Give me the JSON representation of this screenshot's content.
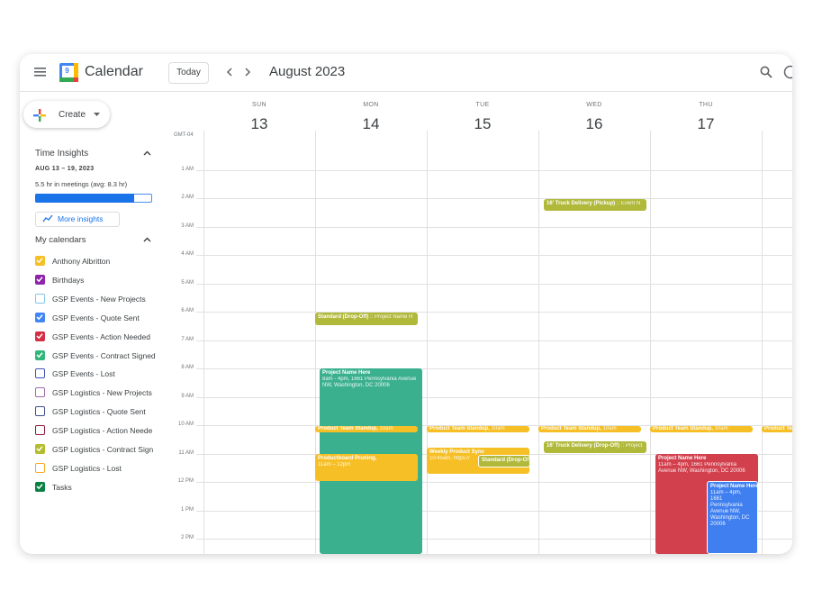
{
  "header": {
    "logo_day": "9",
    "app_name": "Calendar",
    "today_button": "Today",
    "month": "August 2023"
  },
  "sidebar": {
    "create": "Create",
    "time_insights": {
      "title": "Time Insights",
      "range": "AUG 13 – 19, 2023",
      "summary": "5.5 hr in meetings (avg: 8.3 hr)",
      "more": "More insights"
    },
    "my_calendars": {
      "title": "My calendars",
      "calendars": [
        {
          "name": "Anthony Albritton",
          "color": "#f6bf26",
          "checked": true
        },
        {
          "name": "Birthdays",
          "color": "#8e24aa",
          "checked": true
        },
        {
          "name": "GSP Events - New Projects",
          "color": "#7ec8e3",
          "checked": false
        },
        {
          "name": "GSP Events - Quote Sent",
          "color": "#4285f4",
          "checked": true
        },
        {
          "name": "GSP Events - Action Needed",
          "color": "#d32f45",
          "checked": true
        },
        {
          "name": "GSP Events - Contract Signed",
          "color": "#33b679",
          "checked": true
        },
        {
          "name": "GSP Events - Lost",
          "color": "#3f51b5",
          "checked": false
        },
        {
          "name": "GSP Logistics - New Projects",
          "color": "#9e69af",
          "checked": false
        },
        {
          "name": "GSP Logistics - Quote Sent",
          "color": "#3f4f8f",
          "checked": false
        },
        {
          "name": "GSP Logistics - Action Neede",
          "color": "#8b1a3a",
          "checked": false
        },
        {
          "name": "GSP Logistics - Contract Sign",
          "color": "#b4bd2e",
          "checked": true
        },
        {
          "name": "GSP Logistics - Lost",
          "color": "#f6a623",
          "checked": false
        },
        {
          "name": "Tasks",
          "color": "#0b8043",
          "checked": true
        }
      ]
    }
  },
  "grid": {
    "timezone": "GMT-04",
    "days": [
      {
        "weekday": "SUN",
        "date": "13"
      },
      {
        "weekday": "MON",
        "date": "14"
      },
      {
        "weekday": "TUE",
        "date": "15"
      },
      {
        "weekday": "WED",
        "date": "16"
      },
      {
        "weekday": "THU",
        "date": "17"
      }
    ],
    "hours": [
      "1 AM",
      "2 AM",
      "3 AM",
      "4 AM",
      "5 AM",
      "6 AM",
      "7 AM",
      "8 AM",
      "9 AM",
      "10 AM",
      "11 AM",
      "12 PM",
      "1 PM",
      "2 PM"
    ]
  },
  "events": [
    {
      "title": "16' Truck Delivery (Pickup)",
      "detail": ":: Event N",
      "color": "#b1b93a"
    },
    {
      "title": "Standard (Drop-Off)",
      "detail": ":: Project Name H",
      "color": "#b1b93a"
    },
    {
      "title": "Project Name Here",
      "detail": "8am - 4pm, 1661 Pennsylvania Avenue NW, Washington, DC 20006",
      "color": "#3bb08f"
    },
    {
      "title": "Product Team Standup,",
      "detail": "10am",
      "color": "#f6bf26"
    },
    {
      "title": "Product Team Standup,",
      "detail": "10am",
      "color": "#f6bf26"
    },
    {
      "title": "Product Team Standup,",
      "detail": "10am",
      "color": "#f6bf26"
    },
    {
      "title": "Product Team Standup,",
      "detail": "10am",
      "color": "#f6bf26"
    },
    {
      "title": "Product Te",
      "color": "#f6bf26"
    },
    {
      "title": "16' Truck Delivery (Drop-Off)",
      "detail": ":: Project",
      "color": "#b1b93a"
    },
    {
      "title": "Productboard Pruning,",
      "detail": "11am – 12pm",
      "color": "#f6bf26"
    },
    {
      "title": "Weekly Product Sync",
      "detail": "10:45am, https://",
      "color": "#f6bf26"
    },
    {
      "title": "Standard (Drop-Of",
      "color": "#b1b93a"
    },
    {
      "title": "Project Name Here",
      "detail": "11am – 4pm, 1661 Pennsylvania Avenue NW, Washington, DC 20006",
      "color": "#d2404d"
    },
    {
      "title": "Project Name Here",
      "detail": "11am – 4pm, 1661 Pennsylvania Avenue NW, Washington, DC 20006",
      "color": "#3f7ff0"
    }
  ]
}
